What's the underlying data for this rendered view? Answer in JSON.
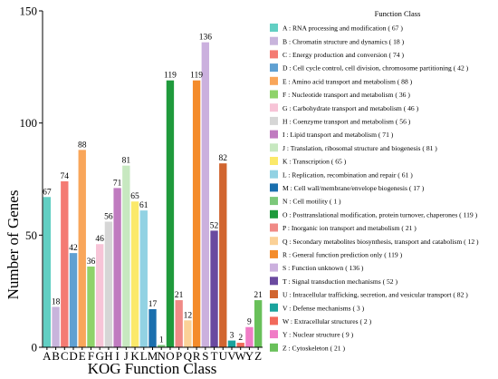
{
  "chart_data": {
    "type": "bar",
    "xlabel": "KOG Function Class",
    "ylabel": "Number of Genes",
    "ylim": [
      0,
      150
    ],
    "yticks": [
      0,
      50,
      100,
      150
    ],
    "legend_title": "Function Class",
    "legend_position": "right",
    "categories": [
      "A",
      "B",
      "C",
      "D",
      "E",
      "F",
      "G",
      "H",
      "I",
      "J",
      "K",
      "L",
      "M",
      "N",
      "O",
      "P",
      "Q",
      "R",
      "S",
      "T",
      "U",
      "V",
      "W",
      "Y",
      "Z"
    ],
    "values": [
      67,
      18,
      74,
      42,
      88,
      36,
      46,
      56,
      71,
      81,
      65,
      61,
      17,
      1,
      119,
      21,
      12,
      119,
      136,
      52,
      82,
      3,
      2,
      9,
      21
    ],
    "value_labels": [
      "67",
      "18",
      "74",
      "42",
      "88",
      "36",
      "46",
      "56",
      "71",
      "81",
      "65",
      "61",
      "17",
      "1",
      "119",
      "21",
      "12",
      "119",
      "136",
      "52",
      "82",
      "3",
      "2",
      "9",
      "21"
    ],
    "colors": [
      "#62cfc3",
      "#c8b4dc",
      "#f47b73",
      "#5fa0d2",
      "#f9a65a",
      "#8fd36a",
      "#f7c4d7",
      "#d6d6d6",
      "#c07bc0",
      "#c7e8c0",
      "#fbe96a",
      "#92d2e3",
      "#1a6fae",
      "#7cc87a",
      "#1f9a3c",
      "#f08a86",
      "#fbd197",
      "#f48b2a",
      "#cbb0de",
      "#6a4aa0",
      "#d1652f",
      "#1aa39d",
      "#f26a5c",
      "#f07cc6",
      "#69c05a"
    ],
    "legend": [
      "A : RNA processing and modification ( 67 )",
      "B : Chromatin structure and dynamics ( 18 )",
      "C : Energy production and conversion ( 74 )",
      "D : Cell cycle control, cell division, chromosome partitioning ( 42 )",
      "E : Amino acid transport and metabolism ( 88 )",
      "F : Nucleotide transport and metabolism ( 36 )",
      "G : Carbohydrate transport and metabolism ( 46 )",
      "H : Coenzyme transport and metabolism ( 56 )",
      "I : Lipid transport and metabolism ( 71 )",
      "J : Translation, ribosomal structure and biogenesis ( 81 )",
      "K : Transcription ( 65 )",
      "L : Replication, recombination and repair ( 61 )",
      "M : Cell wall/membrane/envelope biogenesis ( 17 )",
      "N : Cell motility ( 1 )",
      "O : Posttranslational modification, protein turnover, chaperones ( 119 )",
      "P : Inorganic ion transport and metabolism ( 21 )",
      "Q : Secondary metabolites biosynthesis, transport and catabolism ( 12 )",
      "R : General function prediction only ( 119 )",
      "S : Function unknown ( 136 )",
      "T : Signal transduction mechanisms ( 52 )",
      "U : Intracellular trafficking, secretion, and vesicular transport ( 82 )",
      "V : Defense mechanisms ( 3 )",
      "W : Extracellular structures ( 2 )",
      "Y : Nuclear structure ( 9 )",
      "Z : Cytoskeleton ( 21 )"
    ]
  }
}
